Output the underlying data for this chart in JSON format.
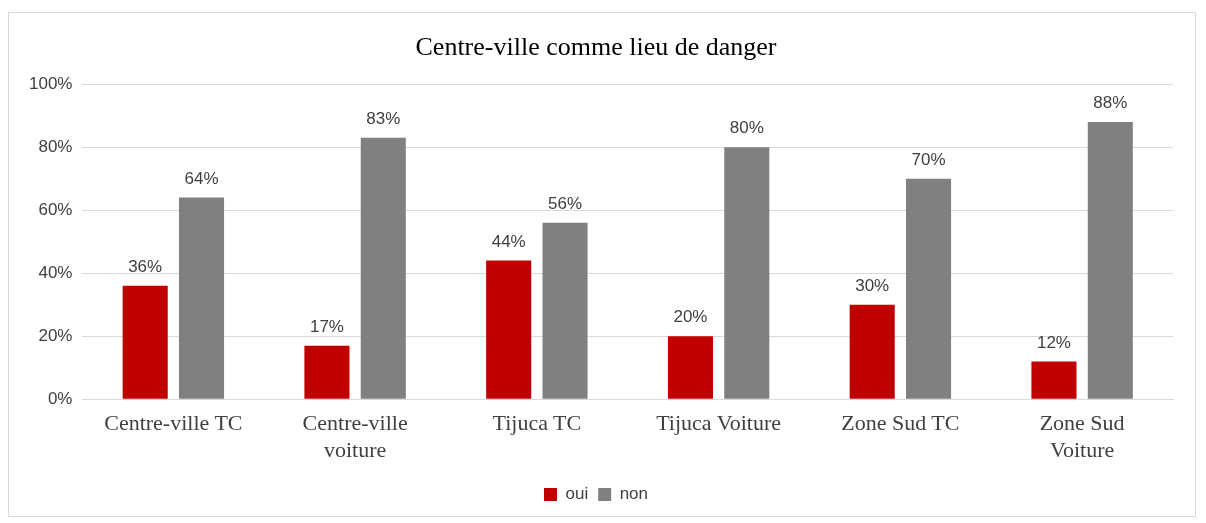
{
  "chart_data": {
    "type": "bar",
    "title": "Centre-ville comme lieu de danger",
    "categories": [
      "Centre-ville TC",
      "Centre-ville voiture",
      "Tijuca TC",
      "Tijuca Voiture",
      "Zone Sud TC",
      "Zone Sud Voiture"
    ],
    "series": [
      {
        "name": "oui",
        "color": "#c00000",
        "values": [
          36,
          17,
          44,
          20,
          30,
          12
        ],
        "value_labels": [
          "36%",
          "17%",
          "44%",
          "20%",
          "30%",
          "12%"
        ]
      },
      {
        "name": "non",
        "color": "#808080",
        "values": [
          64,
          83,
          56,
          80,
          70,
          88
        ],
        "value_labels": [
          "64%",
          "83%",
          "56%",
          "80%",
          "70%",
          "88%"
        ]
      }
    ],
    "ylim": [
      0,
      100
    ],
    "yticks": [
      {
        "value": 0,
        "label": "0%"
      },
      {
        "value": 20,
        "label": "20%"
      },
      {
        "value": 40,
        "label": "40%"
      },
      {
        "value": 60,
        "label": "60%"
      },
      {
        "value": 80,
        "label": "80%"
      },
      {
        "value": 100,
        "label": "100%"
      }
    ],
    "grid": "y",
    "legend": "bottom"
  }
}
